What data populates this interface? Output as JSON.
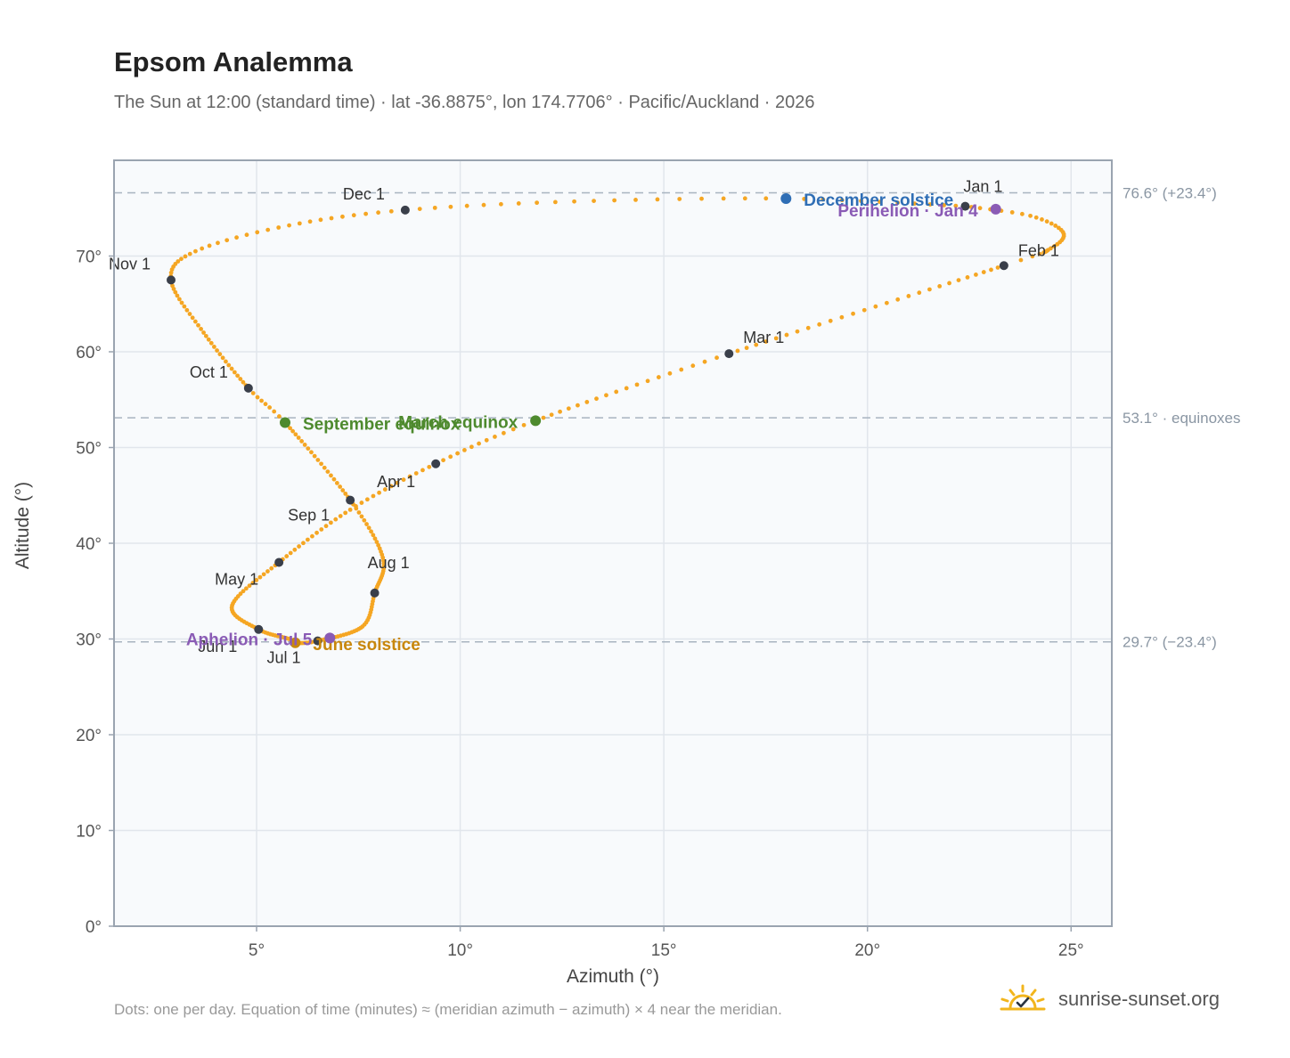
{
  "header": {
    "title": "Epsom Analemma",
    "subtitle": "The Sun at 12:00 (standard time) · lat -36.8875°, lon 174.7706° · Pacific/Auckland · 2026"
  },
  "footer": {
    "note": "Dots: one per day. Equation of time (minutes) ≈ (meridian azimuth − azimuth) × 4 near the meridian.",
    "brand": "sunrise-sunset.org",
    "brand_icon": "sun-check-icon"
  },
  "colors": {
    "dots": "#f5a623",
    "month_marker": "#3a3f4a",
    "equinox": "#4e8a2e",
    "december_solstice": "#2f6eb5",
    "june_solstice": "#c8870c",
    "apsis": "#8a5bb5",
    "plot_bg": "#f8fafc",
    "grid": "#e1e6ec",
    "ref_line": "#a8b4c0"
  },
  "chart_data": {
    "type": "scatter",
    "xlabel": "Azimuth (°)",
    "ylabel": "Altitude (°)",
    "xlim": [
      1.5,
      26
    ],
    "ylim": [
      0,
      80
    ],
    "xticks": [
      {
        "value": 5,
        "label": "5°"
      },
      {
        "value": 10,
        "label": "10°"
      },
      {
        "value": 15,
        "label": "15°"
      },
      {
        "value": 20,
        "label": "20°"
      },
      {
        "value": 25,
        "label": "25°"
      }
    ],
    "yticks": [
      {
        "value": 0,
        "label": "0°"
      },
      {
        "value": 10,
        "label": "10°"
      },
      {
        "value": 20,
        "label": "20°"
      },
      {
        "value": 30,
        "label": "30°"
      },
      {
        "value": 40,
        "label": "40°"
      },
      {
        "value": 50,
        "label": "50°"
      },
      {
        "value": 60,
        "label": "60°"
      },
      {
        "value": 70,
        "label": "70°"
      }
    ],
    "reference_lines": [
      {
        "y": 76.6,
        "label": "76.6° (+23.4°)"
      },
      {
        "y": 53.1,
        "label": "53.1° · equinoxes"
      },
      {
        "y": 29.7,
        "label": "29.7° (−23.4°)"
      }
    ],
    "month_markers": [
      {
        "label": "Jan 1",
        "az": 22.4,
        "alt": 75.2
      },
      {
        "label": "Feb 1",
        "az": 23.35,
        "alt": 69.0
      },
      {
        "label": "Mar 1",
        "az": 16.6,
        "alt": 59.8
      },
      {
        "label": "Apr 1",
        "az": 9.4,
        "alt": 48.3
      },
      {
        "label": "May 1",
        "az": 5.55,
        "alt": 38.0
      },
      {
        "label": "Jun 1",
        "az": 5.05,
        "alt": 31.0
      },
      {
        "label": "Jul 1",
        "az": 6.5,
        "alt": 29.8
      },
      {
        "label": "Aug 1",
        "az": 7.9,
        "alt": 34.8
      },
      {
        "label": "Sep 1",
        "az": 7.3,
        "alt": 44.5
      },
      {
        "label": "Oct 1",
        "az": 4.8,
        "alt": 56.2
      },
      {
        "label": "Nov 1",
        "az": 2.9,
        "alt": 67.5
      },
      {
        "label": "Dec 1",
        "az": 8.65,
        "alt": 74.8
      }
    ],
    "events": [
      {
        "label": "December solstice",
        "az": 18.0,
        "alt": 76.0,
        "color": "#2f6eb5"
      },
      {
        "label": "Perihelion · Jan 4",
        "az": 23.15,
        "alt": 74.9,
        "color": "#8a5bb5"
      },
      {
        "label": "March equinox",
        "az": 11.85,
        "alt": 52.8,
        "color": "#4e8a2e"
      },
      {
        "label": "September equinox",
        "az": 5.7,
        "alt": 52.6,
        "color": "#4e8a2e"
      },
      {
        "label": "June solstice",
        "az": 5.95,
        "alt": 29.6,
        "color": "#c8870c"
      },
      {
        "label": "Aphelion · Jul 5",
        "az": 6.8,
        "alt": 30.1,
        "color": "#8a5bb5"
      }
    ],
    "curve_anchors": [
      {
        "day": 1,
        "az": 22.4,
        "alt": 75.2
      },
      {
        "day": 8,
        "az": 24.0,
        "alt": 74.2
      },
      {
        "day": 16,
        "az": 24.8,
        "alt": 72.5
      },
      {
        "day": 24,
        "az": 24.5,
        "alt": 70.8
      },
      {
        "day": 32,
        "az": 23.35,
        "alt": 69.0
      },
      {
        "day": 60,
        "az": 16.6,
        "alt": 59.8
      },
      {
        "day": 79,
        "az": 11.85,
        "alt": 52.8
      },
      {
        "day": 91,
        "az": 9.4,
        "alt": 48.3
      },
      {
        "day": 105,
        "az": 7.3,
        "alt": 43.5
      },
      {
        "day": 121,
        "az": 5.55,
        "alt": 38.0
      },
      {
        "day": 137,
        "az": 4.4,
        "alt": 33.5
      },
      {
        "day": 152,
        "az": 5.05,
        "alt": 31.0
      },
      {
        "day": 166,
        "az": 5.8,
        "alt": 30.0
      },
      {
        "day": 172,
        "az": 5.95,
        "alt": 29.6
      },
      {
        "day": 182,
        "az": 6.5,
        "alt": 29.8
      },
      {
        "day": 200,
        "az": 7.6,
        "alt": 31.3
      },
      {
        "day": 213,
        "az": 7.9,
        "alt": 34.8
      },
      {
        "day": 228,
        "az": 8.1,
        "alt": 38.5
      },
      {
        "day": 244,
        "az": 7.3,
        "alt": 44.5
      },
      {
        "day": 266,
        "az": 5.7,
        "alt": 52.6
      },
      {
        "day": 274,
        "az": 4.8,
        "alt": 56.2
      },
      {
        "day": 290,
        "az": 3.7,
        "alt": 62.0
      },
      {
        "day": 305,
        "az": 2.9,
        "alt": 67.5
      },
      {
        "day": 315,
        "az": 3.5,
        "alt": 70.5
      },
      {
        "day": 325,
        "az": 5.8,
        "alt": 73.2
      },
      {
        "day": 335,
        "az": 8.65,
        "alt": 74.8
      },
      {
        "day": 345,
        "az": 12.8,
        "alt": 75.7
      },
      {
        "day": 355,
        "az": 18.0,
        "alt": 76.0
      },
      {
        "day": 366,
        "az": 22.4,
        "alt": 75.2
      }
    ]
  }
}
